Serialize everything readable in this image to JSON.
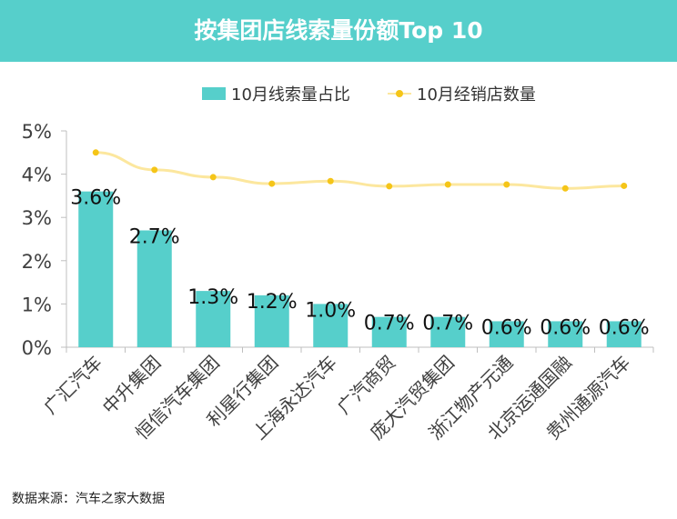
{
  "title": "按集团店线索量份额Top 10",
  "source": "数据来源：汽车之家大数据",
  "colors": {
    "header": "#56CFCB",
    "bar": "#56CFCB",
    "line": "#FCE79E",
    "dot": "#F5C518"
  },
  "chart_data": {
    "type": "bar",
    "categories": [
      "广汇汽车",
      "中升集团",
      "恒信汽车集团",
      "利星行集团",
      "上海永达汽车",
      "广汽商贸",
      "庞大汽贸集团",
      "浙江物产元通",
      "北京运通国融",
      "贵州通源汽车"
    ],
    "series": [
      {
        "name": "10月线索量占比",
        "type": "bar",
        "values": [
          3.6,
          2.7,
          1.3,
          1.2,
          1.0,
          0.7,
          0.7,
          0.6,
          0.6,
          0.6
        ],
        "labels": [
          "3.6%",
          "2.7%",
          "1.3%",
          "1.2%",
          "1.0%",
          "0.7%",
          "0.7%",
          "0.6%",
          "0.6%",
          "0.6%"
        ]
      },
      {
        "name": "10月经销店数量",
        "type": "line",
        "values": [
          4.5,
          4.1,
          3.93,
          3.78,
          3.84,
          3.72,
          3.76,
          3.76,
          3.67,
          3.73
        ]
      }
    ],
    "yticks": [
      "0%",
      "1%",
      "2%",
      "3%",
      "4%",
      "5%"
    ],
    "ylim": [
      0,
      5
    ],
    "legend": "top-center",
    "grid": false
  }
}
